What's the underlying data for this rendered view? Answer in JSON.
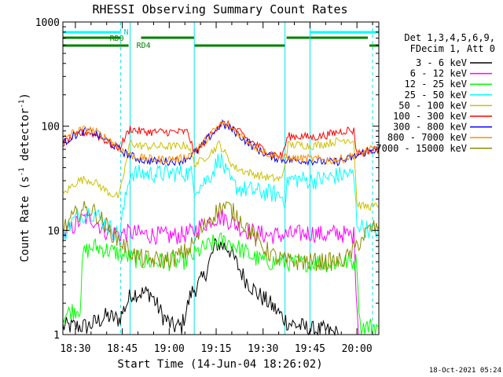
{
  "chart_data": {
    "type": "line",
    "title": "RHESSI Observing Summary Count Rates",
    "xlabel": "Start Time (14-Jun-04 18:26:02)",
    "ylabel_main": "Count Rate (s",
    "ylabel_sup1": "-1",
    "ylabel_mid": " detector",
    "ylabel_sup2": "-1",
    "ylabel_end": ")",
    "y_scale": "log",
    "ylim": [
      1,
      1000
    ],
    "xlim_minutes": [
      0,
      101
    ],
    "x_ticks": [
      {
        "label": "18:30",
        "m": 4
      },
      {
        "label": "18:45",
        "m": 19
      },
      {
        "label": "19:00",
        "m": 34
      },
      {
        "label": "19:15",
        "m": 49
      },
      {
        "label": "19:30",
        "m": 64
      },
      {
        "label": "19:45",
        "m": 79
      },
      {
        "label": "20:00",
        "m": 94
      }
    ],
    "y_ticks": [
      {
        "label": "1",
        "v": 1
      },
      {
        "label": "10",
        "v": 10
      },
      {
        "label": "100",
        "v": 100
      },
      {
        "label": "1000",
        "v": 1000
      }
    ],
    "legend_header": [
      "Det 1,3,4,5,6,9,",
      "FDecim 1, Att 0"
    ],
    "legend_placement": "right",
    "footer_date": "18-Oct-2021 05:24",
    "flag_labels": {
      "n": "N",
      "rd0": "RD0",
      "rd4": "RD4"
    },
    "flags": {
      "cyan_n": [
        [
          0,
          18.5
        ],
        [
          79,
          101
        ]
      ],
      "green_rd0": [
        [
          0,
          18.5
        ],
        [
          25,
          42
        ],
        [
          71.5,
          97.5
        ]
      ],
      "green_rd4": [
        [
          0,
          21
        ],
        [
          42,
          71
        ],
        [
          98,
          101
        ]
      ]
    },
    "vlines_solid": [
      21.5,
      42,
      71,
      79
    ],
    "vlines_dashed": [
      18.5,
      99
    ],
    "series": [
      {
        "name": "3 - 6 keV",
        "color": "#000000",
        "points": [
          [
            0,
            1.2
          ],
          [
            8,
            1.2
          ],
          [
            14,
            1.5
          ],
          [
            18,
            1.4
          ],
          [
            22,
            2.5
          ],
          [
            28,
            2.5
          ],
          [
            32,
            1.5
          ],
          [
            35,
            1.2
          ],
          [
            38,
            1.2
          ],
          [
            41,
            2.5
          ],
          [
            45,
            3.5
          ],
          [
            49,
            7.5
          ],
          [
            53,
            6.8
          ],
          [
            56,
            4.5
          ],
          [
            58,
            3.5
          ],
          [
            62,
            2.5
          ],
          [
            66,
            2.0
          ],
          [
            70,
            1.5
          ],
          [
            72,
            1.3
          ],
          [
            76,
            1.2
          ],
          [
            80,
            1.1
          ],
          [
            84,
            1.1
          ],
          [
            88,
            1.0
          ]
        ]
      },
      {
        "name": "6 - 12 keV",
        "color": "#ff00ff",
        "points": [
          [
            0,
            9
          ],
          [
            2,
            10
          ],
          [
            5,
            12
          ],
          [
            7,
            13
          ],
          [
            9,
            13
          ],
          [
            11,
            12
          ],
          [
            13,
            10
          ],
          [
            16,
            9.5
          ],
          [
            18,
            9.2
          ],
          [
            21.5,
            9.5
          ],
          [
            26,
            9.2
          ],
          [
            30,
            9
          ],
          [
            34,
            8.8
          ],
          [
            38,
            9
          ],
          [
            41,
            9.5
          ],
          [
            44,
            11
          ],
          [
            48,
            13
          ],
          [
            51,
            13.5
          ],
          [
            54,
            12
          ],
          [
            57,
            10.5
          ],
          [
            61,
            9.5
          ],
          [
            65,
            9
          ],
          [
            69,
            9
          ],
          [
            72,
            9
          ],
          [
            79,
            9.5
          ],
          [
            84,
            9
          ],
          [
            88,
            9.5
          ],
          [
            91,
            9
          ],
          [
            93,
            9
          ],
          [
            94.5,
            1.0
          ]
        ]
      },
      {
        "name": "12 - 25 keV",
        "color": "#00ff00",
        "points": [
          [
            0,
            1.5
          ],
          [
            3,
            1.7
          ],
          [
            5.5,
            1.8
          ],
          [
            6.5,
            6
          ],
          [
            8,
            6.5
          ],
          [
            10,
            7
          ],
          [
            14,
            6.5
          ],
          [
            18,
            6
          ],
          [
            21.5,
            5.5
          ],
          [
            26,
            5
          ],
          [
            30,
            5
          ],
          [
            34,
            5
          ],
          [
            38,
            5
          ],
          [
            41,
            5.5
          ],
          [
            44,
            6.5
          ],
          [
            48,
            7.5
          ],
          [
            51,
            8
          ],
          [
            54,
            7.5
          ],
          [
            57,
            6.5
          ],
          [
            61,
            5.5
          ],
          [
            65,
            5
          ],
          [
            70,
            5
          ],
          [
            75,
            4.8
          ],
          [
            80,
            5
          ],
          [
            85,
            4.8
          ],
          [
            90,
            5
          ],
          [
            94,
            5
          ],
          [
            95,
            1.2
          ],
          [
            101,
            1.2
          ]
        ]
      },
      {
        "name": "25 - 50 keV",
        "color": "#00ffff",
        "points": [
          [
            0,
            9
          ],
          [
            1,
            10
          ],
          [
            3,
            12
          ],
          [
            5,
            14
          ],
          [
            7,
            14.5
          ],
          [
            9,
            15
          ],
          [
            11,
            14
          ],
          [
            13,
            12
          ],
          [
            16,
            10
          ],
          [
            18,
            9
          ],
          [
            21.5,
            36
          ],
          [
            24,
            35
          ],
          [
            27,
            35
          ],
          [
            31,
            35
          ],
          [
            34,
            35
          ],
          [
            38,
            36
          ],
          [
            41,
            35
          ],
          [
            42,
            26
          ],
          [
            44,
            27
          ],
          [
            46,
            31
          ],
          [
            48,
            37
          ],
          [
            50,
            50
          ],
          [
            51,
            45
          ],
          [
            52,
            36
          ],
          [
            54,
            28
          ],
          [
            57,
            25
          ],
          [
            61,
            24
          ],
          [
            65,
            23
          ],
          [
            69,
            22
          ],
          [
            71,
            20
          ],
          [
            72,
            31
          ],
          [
            76,
            31
          ],
          [
            79,
            30
          ],
          [
            83,
            31
          ],
          [
            87,
            33
          ],
          [
            91,
            35
          ],
          [
            93,
            33
          ],
          [
            94,
            12
          ],
          [
            96,
            10.5
          ],
          [
            99,
            10
          ],
          [
            101,
            10
          ]
        ]
      },
      {
        "name": "50 - 100 keV",
        "color": "#ccc000",
        "points": [
          [
            0,
            22
          ],
          [
            3,
            27
          ],
          [
            5,
            30
          ],
          [
            7,
            31
          ],
          [
            9,
            30
          ],
          [
            11,
            28
          ],
          [
            13,
            25
          ],
          [
            16,
            22
          ],
          [
            18,
            21
          ],
          [
            21.5,
            70
          ],
          [
            24,
            65
          ],
          [
            28,
            64
          ],
          [
            32,
            64
          ],
          [
            36,
            64
          ],
          [
            40,
            66
          ],
          [
            42,
            44
          ],
          [
            44,
            46
          ],
          [
            46,
            52
          ],
          [
            48,
            58
          ],
          [
            50,
            68
          ],
          [
            51,
            60
          ],
          [
            53,
            48
          ],
          [
            55,
            40
          ],
          [
            58,
            37
          ],
          [
            62,
            34
          ],
          [
            66,
            32
          ],
          [
            70,
            31
          ],
          [
            72,
            66
          ],
          [
            76,
            66
          ],
          [
            80,
            65
          ],
          [
            84,
            68
          ],
          [
            88,
            72
          ],
          [
            91,
            75
          ],
          [
            93,
            72
          ],
          [
            94,
            18
          ],
          [
            96,
            17
          ],
          [
            99,
            17
          ],
          [
            101,
            17
          ]
        ]
      },
      {
        "name": "100 - 300 keV",
        "color": "#ff0000",
        "points": [
          [
            0,
            68
          ],
          [
            3,
            78
          ],
          [
            6,
            85
          ],
          [
            8,
            88
          ],
          [
            10,
            84
          ],
          [
            13,
            75
          ],
          [
            16,
            65
          ],
          [
            18,
            62
          ],
          [
            21.5,
            95
          ],
          [
            24,
            90
          ],
          [
            28,
            88
          ],
          [
            32,
            88
          ],
          [
            36,
            88
          ],
          [
            40,
            88
          ],
          [
            42,
            55
          ],
          [
            44,
            62
          ],
          [
            46,
            76
          ],
          [
            48,
            90
          ],
          [
            50,
            102
          ],
          [
            51,
            106
          ],
          [
            52,
            105
          ],
          [
            54,
            98
          ],
          [
            57,
            85
          ],
          [
            60,
            72
          ],
          [
            64,
            60
          ],
          [
            67,
            54
          ],
          [
            70,
            52
          ],
          [
            72,
            80
          ],
          [
            76,
            80
          ],
          [
            80,
            78
          ],
          [
            84,
            82
          ],
          [
            88,
            88
          ],
          [
            91,
            92
          ],
          [
            93,
            90
          ],
          [
            94,
            55
          ],
          [
            97,
            58
          ],
          [
            101,
            60
          ]
        ]
      },
      {
        "name": "300 - 800 keV",
        "color": "#0000ff",
        "points": [
          [
            0,
            68
          ],
          [
            3,
            80
          ],
          [
            6,
            88
          ],
          [
            8,
            90
          ],
          [
            10,
            86
          ],
          [
            13,
            76
          ],
          [
            16,
            66
          ],
          [
            18,
            60
          ],
          [
            20,
            55
          ],
          [
            23,
            50
          ],
          [
            26,
            47
          ],
          [
            30,
            46
          ],
          [
            34,
            46
          ],
          [
            38,
            47
          ],
          [
            41,
            52
          ],
          [
            44,
            62
          ],
          [
            47,
            80
          ],
          [
            50,
            100
          ],
          [
            51,
            104
          ],
          [
            53,
            98
          ],
          [
            56,
            84
          ],
          [
            59,
            70
          ],
          [
            62,
            60
          ],
          [
            66,
            52
          ],
          [
            70,
            48
          ],
          [
            74,
            47
          ],
          [
            78,
            47
          ],
          [
            82,
            46
          ],
          [
            86,
            45
          ],
          [
            90,
            47
          ],
          [
            94,
            52
          ],
          [
            97,
            57
          ],
          [
            101,
            60
          ]
        ]
      },
      {
        "name": "800 - 7000 keV",
        "color": "#ff8c00",
        "points": [
          [
            0,
            75
          ],
          [
            3,
            86
          ],
          [
            6,
            92
          ],
          [
            8,
            94
          ],
          [
            10,
            90
          ],
          [
            13,
            80
          ],
          [
            16,
            70
          ],
          [
            18,
            62
          ],
          [
            20,
            56
          ],
          [
            23,
            51
          ],
          [
            26,
            49
          ],
          [
            30,
            48
          ],
          [
            34,
            48
          ],
          [
            38,
            49
          ],
          [
            41,
            54
          ],
          [
            44,
            64
          ],
          [
            47,
            82
          ],
          [
            50,
            102
          ],
          [
            51,
            106
          ],
          [
            53,
            100
          ],
          [
            56,
            86
          ],
          [
            59,
            72
          ],
          [
            62,
            62
          ],
          [
            66,
            54
          ],
          [
            70,
            50
          ],
          [
            74,
            49
          ],
          [
            78,
            49
          ],
          [
            82,
            48
          ],
          [
            86,
            47
          ],
          [
            90,
            49
          ],
          [
            94,
            54
          ],
          [
            97,
            58
          ],
          [
            101,
            62
          ]
        ]
      },
      {
        "name": "7000 - 15000 keV",
        "color": "#8b8b00",
        "points": [
          [
            0,
            10
          ],
          [
            2,
            12
          ],
          [
            4,
            14
          ],
          [
            6,
            15.5
          ],
          [
            8,
            16
          ],
          [
            10,
            15
          ],
          [
            12,
            13
          ],
          [
            15,
            10
          ],
          [
            18,
            8
          ],
          [
            21,
            6.5
          ],
          [
            24,
            5.5
          ],
          [
            28,
            5.2
          ],
          [
            32,
            5.2
          ],
          [
            36,
            5.5
          ],
          [
            40,
            6.5
          ],
          [
            43,
            8.5
          ],
          [
            46,
            12
          ],
          [
            49,
            15
          ],
          [
            51,
            17
          ],
          [
            53,
            16.5
          ],
          [
            56,
            13.5
          ],
          [
            59,
            10.5
          ],
          [
            62,
            8
          ],
          [
            65,
            6.5
          ],
          [
            68,
            5.5
          ],
          [
            72,
            5
          ],
          [
            78,
            5
          ],
          [
            84,
            5
          ],
          [
            88,
            5
          ],
          [
            91,
            5.5
          ],
          [
            93,
            6.5
          ],
          [
            95,
            8
          ],
          [
            97,
            9.5
          ],
          [
            99,
            10.5
          ],
          [
            101,
            11
          ]
        ]
      }
    ]
  }
}
